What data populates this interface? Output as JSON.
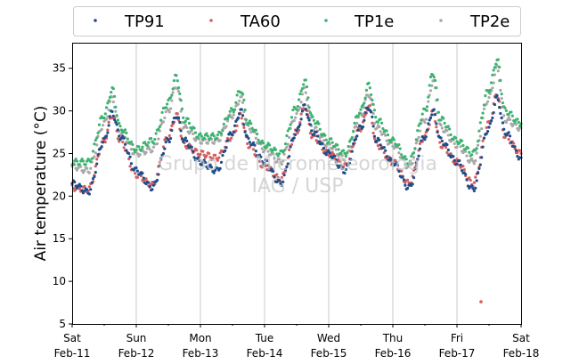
{
  "chart_data": {
    "type": "scatter",
    "title": "",
    "ylabel": "Air temperature (°C)",
    "xlabel": "",
    "ylim": [
      5,
      38
    ],
    "yticks": [
      5,
      10,
      15,
      20,
      25,
      30,
      35
    ],
    "xlim": [
      "2023-02-11 00:00",
      "2023-02-18 00:00"
    ],
    "x_ticks": [
      {
        "day": "Sat",
        "date": "Feb-11"
      },
      {
        "day": "Sun",
        "date": "Feb-12"
      },
      {
        "day": "Mon",
        "date": "Feb-13"
      },
      {
        "day": "Tue",
        "date": "Feb-14"
      },
      {
        "day": "Wed",
        "date": "Feb-15"
      },
      {
        "day": "Thu",
        "date": "Feb-16"
      },
      {
        "day": "Fri",
        "date": "Feb-17"
      },
      {
        "day": "Sat",
        "date": "Feb-18"
      }
    ],
    "grid": "vertical gridlines at day boundaries",
    "legend_position": "top, above plot",
    "watermark": [
      "Grupo de Micrometeorologia",
      "IAG / USP"
    ],
    "series": [
      {
        "name": "TP91",
        "color": "#1f4e8c",
        "x": [
          "02-11 00:00",
          "02-11 06:00",
          "02-11 12:00",
          "02-11 15:00",
          "02-11 18:00",
          "02-12 00:00",
          "02-12 06:00",
          "02-12 12:00",
          "02-12 15:00",
          "02-12 18:00",
          "02-13 00:00",
          "02-13 06:00",
          "02-13 12:00",
          "02-13 15:00",
          "02-13 18:00",
          "02-14 00:00",
          "02-14 06:00",
          "02-14 12:00",
          "02-14 15:00",
          "02-14 18:00",
          "02-15 00:00",
          "02-15 06:00",
          "02-15 12:00",
          "02-15 15:00",
          "02-15 18:00",
          "02-16 00:00",
          "02-16 06:00",
          "02-16 12:00",
          "02-16 15:00",
          "02-16 18:00",
          "02-17 00:00",
          "02-17 06:00",
          "02-17 12:00",
          "02-17 15:00",
          "02-17 18:00",
          "02-18 00:00"
        ],
        "y": [
          21.5,
          20.5,
          26.5,
          29.8,
          27,
          23,
          21,
          26.5,
          29.5,
          26.5,
          24,
          23,
          27.5,
          30,
          26.5,
          24,
          21.5,
          27.5,
          30.5,
          27.5,
          25,
          23,
          28,
          30.5,
          26.5,
          24,
          21,
          27,
          30,
          26.5,
          24,
          20.8,
          28,
          31.5,
          27.5,
          24.5
        ]
      },
      {
        "name": "TA60",
        "color": "#d45f5f",
        "x": [
          "02-11 00:00",
          "02-11 06:00",
          "02-11 12:00",
          "02-11 15:00",
          "02-11 18:00",
          "02-12 00:00",
          "02-12 06:00",
          "02-12 12:00",
          "02-12 15:00",
          "02-12 18:00",
          "02-13 00:00",
          "02-13 06:00",
          "02-13 12:00",
          "02-13 15:00",
          "02-13 18:00",
          "02-14 00:00",
          "02-14 06:00",
          "02-14 12:00",
          "02-14 15:00",
          "02-14 18:00",
          "02-15 00:00",
          "02-15 06:00",
          "02-15 12:00",
          "02-15 15:00",
          "02-15 18:00",
          "02-16 00:00",
          "02-16 06:00",
          "02-16 12:00",
          "02-16 15:00",
          "02-16 18:00",
          "02-17 00:00",
          "02-17 06:00",
          "02-17 12:00",
          "02-17 15:00",
          "02-17 18:00",
          "02-18 00:00"
        ],
        "y": [
          21,
          20.8,
          26.5,
          29.5,
          26.5,
          22.5,
          21.3,
          27,
          29.5,
          26,
          25,
          24.5,
          27,
          29.5,
          26,
          23.5,
          22,
          27.5,
          30.5,
          27,
          25,
          23.5,
          28,
          30.5,
          26,
          24,
          21.5,
          27,
          29.8,
          26,
          24,
          21.5,
          28.5,
          32,
          27,
          25
        ],
        "outlier": {
          "x": "02-17 09:00",
          "y": 7.6
        }
      },
      {
        "name": "TP1e",
        "color": "#3cb371",
        "x": [
          "02-11 00:00",
          "02-11 06:00",
          "02-11 12:00",
          "02-11 15:00",
          "02-11 18:00",
          "02-12 00:00",
          "02-12 06:00",
          "02-12 12:00",
          "02-12 15:00",
          "02-12 18:00",
          "02-13 00:00",
          "02-13 06:00",
          "02-13 12:00",
          "02-13 15:00",
          "02-13 18:00",
          "02-14 00:00",
          "02-14 06:00",
          "02-14 12:00",
          "02-14 15:00",
          "02-14 18:00",
          "02-15 00:00",
          "02-15 06:00",
          "02-15 12:00",
          "02-15 15:00",
          "02-15 18:00",
          "02-16 00:00",
          "02-16 06:00",
          "02-16 12:00",
          "02-16 15:00",
          "02-16 18:00",
          "02-17 00:00",
          "02-17 06:00",
          "02-17 12:00",
          "02-17 15:00",
          "02-17 18:00",
          "02-18 00:00"
        ],
        "y": [
          24,
          24,
          29.5,
          32.5,
          28,
          25.5,
          26.5,
          31,
          34,
          29,
          27,
          27,
          30,
          32.5,
          28.5,
          26,
          25,
          30.5,
          33.5,
          29,
          26.5,
          25,
          30,
          33,
          29,
          26.5,
          24,
          30,
          34.5,
          29,
          26.5,
          25,
          32.5,
          36,
          30,
          28.5
        ]
      },
      {
        "name": "TP2e",
        "color": "#a8a8a8",
        "x": [
          "02-11 00:00",
          "02-11 06:00",
          "02-11 12:00",
          "02-11 15:00",
          "02-11 18:00",
          "02-12 00:00",
          "02-12 06:00",
          "02-12 12:00",
          "02-12 15:00",
          "02-12 18:00",
          "02-13 00:00",
          "02-13 06:00",
          "02-13 12:00",
          "02-13 15:00",
          "02-13 18:00",
          "02-14 00:00",
          "02-14 06:00",
          "02-14 12:00",
          "02-14 15:00",
          "02-14 18:00",
          "02-15 00:00",
          "02-15 06:00",
          "02-15 12:00",
          "02-15 15:00",
          "02-15 18:00",
          "02-16 00:00",
          "02-16 06:00",
          "02-16 12:00",
          "02-16 15:00",
          "02-16 18:00",
          "02-17 00:00",
          "02-17 06:00",
          "02-17 12:00",
          "02-17 15:00",
          "02-17 18:00",
          "02-18 00:00"
        ],
        "y": [
          23.5,
          23,
          28.5,
          31.5,
          27.5,
          25,
          25.5,
          30,
          33,
          28,
          26.5,
          26.5,
          29.5,
          31.5,
          28,
          25.5,
          24,
          29.5,
          32.5,
          28,
          26,
          24.5,
          29.5,
          32,
          28,
          26,
          23.5,
          29,
          33.5,
          28,
          26,
          24,
          31.5,
          35,
          29,
          28
        ]
      }
    ]
  }
}
